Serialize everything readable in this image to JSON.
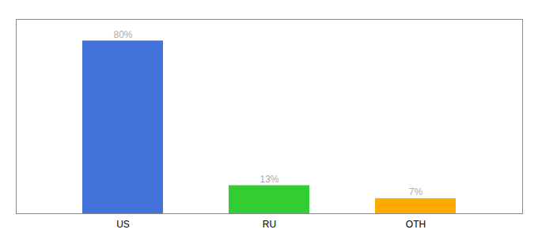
{
  "chart_data": {
    "type": "bar",
    "categories": [
      "US",
      "RU",
      "OTH"
    ],
    "values": [
      80,
      13,
      7
    ],
    "value_labels": [
      "80%",
      "13%",
      "7%"
    ],
    "data_labels": true,
    "colors": [
      "#4472db",
      "#33cc33",
      "#ffaa00"
    ],
    "ylim": [
      0,
      90
    ],
    "yticks": [],
    "tick_labels": "x",
    "grid": false
  }
}
